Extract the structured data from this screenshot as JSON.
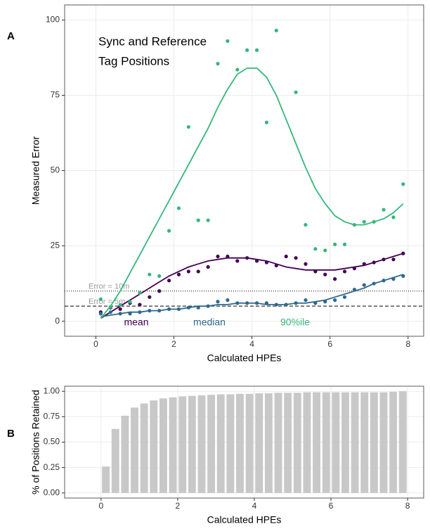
{
  "chart_data": [
    {
      "type": "scatter",
      "panel_label": "A",
      "x_label": "Calculated HPEs",
      "y_label": "Measured Error",
      "annotation": [
        "Sync and Reference",
        "Tag Positions"
      ],
      "xlim": [
        -0.8,
        8.4
      ],
      "ylim": [
        -5,
        105
      ],
      "xticks": [
        0,
        2,
        4,
        6,
        8
      ],
      "yticks": [
        0,
        25,
        50,
        75,
        100
      ],
      "grid": true,
      "hlines": [
        {
          "y": 10,
          "label": "Error = 10m",
          "style": "dotted"
        },
        {
          "y": 5,
          "label": "Error = 5m",
          "style": "dashed"
        }
      ],
      "x": [
        0.125,
        0.375,
        0.625,
        0.875,
        1.125,
        1.375,
        1.625,
        1.875,
        2.125,
        2.375,
        2.625,
        2.875,
        3.125,
        3.375,
        3.625,
        3.875,
        4.125,
        4.375,
        4.625,
        4.875,
        5.125,
        5.375,
        5.625,
        5.875,
        6.125,
        6.375,
        6.625,
        6.875,
        7.125,
        7.375,
        7.625,
        7.875
      ],
      "series": [
        {
          "name": "mean",
          "color": "#440154",
          "values": [
            3,
            4.5,
            4,
            6,
            5.5,
            8,
            10,
            13.5,
            15.5,
            16.5,
            16.5,
            18,
            21.5,
            21.5,
            20,
            21,
            20,
            19.5,
            18.5,
            21.5,
            21,
            19,
            16.5,
            15.5,
            14,
            16.5,
            17.5,
            19,
            19.5,
            20.5,
            20.5,
            22.5
          ],
          "fit": [
            1,
            3,
            5,
            7,
            9,
            11,
            13,
            15,
            16.5,
            18,
            19,
            20,
            20.5,
            21,
            21,
            21,
            20.5,
            20,
            19,
            18,
            17.5,
            17,
            17,
            17,
            17,
            17.5,
            18,
            18.5,
            19.5,
            20.5,
            21.5,
            22.5
          ]
        },
        {
          "name": "median",
          "color": "#31688e",
          "values": [
            2.5,
            3,
            2.5,
            2.5,
            3,
            3.5,
            3.5,
            4,
            4,
            4.5,
            4.5,
            5,
            6.5,
            7,
            6,
            6,
            6,
            6,
            5.5,
            5.5,
            6,
            7,
            6,
            6.5,
            7,
            8,
            10.5,
            12,
            12.5,
            13.5,
            14,
            15
          ],
          "fit": [
            1.5,
            2,
            2.5,
            3,
            3,
            3.5,
            3.5,
            4,
            4,
            4.5,
            5,
            5,
            5.5,
            5.5,
            6,
            6,
            6,
            5.5,
            5.5,
            5.5,
            6,
            6,
            6.5,
            7,
            8,
            9,
            10,
            11,
            12.5,
            13.5,
            14.5,
            15.5
          ]
        },
        {
          "name": "90%ile",
          "color": "#35b779",
          "values": [
            7.3,
            4.7,
            5.4,
            6.4,
            9.4,
            15.5,
            15,
            30,
            37.5,
            64.5,
            33.5,
            33.5,
            85.5,
            93,
            83.5,
            90,
            90,
            66,
            96.5,
            null,
            76,
            32,
            24,
            23.5,
            25.5,
            25.5,
            32,
            33,
            33,
            37,
            34.5,
            45.5
          ],
          "fit": [
            1,
            5,
            10,
            16,
            22,
            28,
            34,
            40,
            46,
            52,
            58,
            64,
            71,
            77,
            82,
            84,
            84,
            81,
            75,
            67,
            59,
            51,
            44,
            39,
            35,
            33,
            32,
            32,
            33,
            34,
            36,
            39
          ]
        }
      ]
    },
    {
      "type": "bar",
      "panel_label": "B",
      "x_label": "Calculated HPEs",
      "y_label": "% of Positions Retained",
      "xlim": [
        -0.95,
        8.42
      ],
      "ylim": [
        -0.05,
        1.05
      ],
      "xticks": [
        0,
        2,
        4,
        6,
        8
      ],
      "yticks": [
        {
          "value": 0,
          "label": "0.00"
        },
        {
          "value": 0.25,
          "label": "0.25"
        },
        {
          "value": 0.5,
          "label": "0.50"
        },
        {
          "value": 0.75,
          "label": "0.75"
        },
        {
          "value": 1,
          "label": "1.00"
        }
      ],
      "grid": true,
      "color": "#c8c8c8",
      "x": [
        0.125,
        0.375,
        0.625,
        0.875,
        1.125,
        1.375,
        1.625,
        1.875,
        2.125,
        2.375,
        2.625,
        2.875,
        3.125,
        3.375,
        3.625,
        3.875,
        4.125,
        4.375,
        4.625,
        4.875,
        5.125,
        5.375,
        5.625,
        5.875,
        6.125,
        6.375,
        6.625,
        6.875,
        7.125,
        7.375,
        7.625,
        7.875
      ],
      "values": [
        0.26,
        0.63,
        0.76,
        0.84,
        0.88,
        0.91,
        0.93,
        0.94,
        0.95,
        0.955,
        0.96,
        0.965,
        0.97,
        0.97,
        0.975,
        0.975,
        0.98,
        0.98,
        0.985,
        0.985,
        0.985,
        0.99,
        0.99,
        0.99,
        0.99,
        0.99,
        0.99,
        0.99,
        0.99,
        0.99,
        0.995,
        1.0
      ]
    }
  ]
}
